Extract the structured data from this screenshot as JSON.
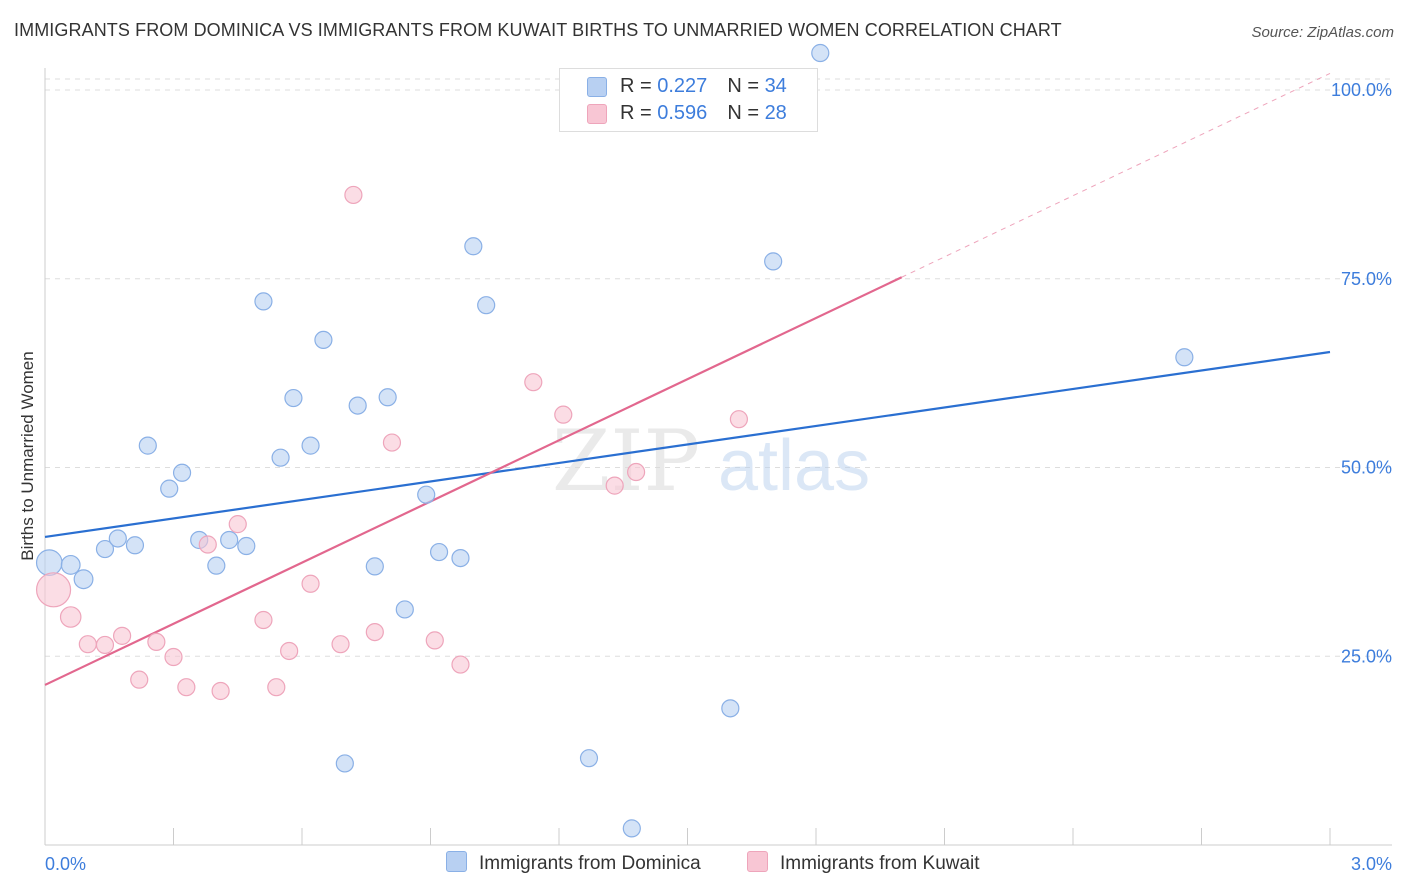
{
  "title": "IMMIGRANTS FROM DOMINICA VS IMMIGRANTS FROM KUWAIT BIRTHS TO UNMARRIED WOMEN CORRELATION CHART",
  "source": "Source: ZipAtlas.com",
  "watermark": {
    "zip": "ZIP",
    "atlas": "atlas"
  },
  "colors": {
    "blue_fill": "#b8d0f2",
    "blue_stroke": "#8ab0e6",
    "blue_line": "#2a6fd1",
    "pink_fill": "#f8c6d4",
    "pink_stroke": "#eea5bb",
    "pink_line": "#e2678e",
    "axis_label": "#3d7ddc",
    "grid": "#dddddd"
  },
  "legend": {
    "rows": [
      {
        "r_label": "R = ",
        "r_value": "0.227",
        "n_label": "N = ",
        "n_value": "34"
      },
      {
        "r_label": "R = ",
        "r_value": "0.596",
        "n_label": "N = ",
        "n_value": "28"
      }
    ]
  },
  "chart_data": {
    "type": "scatter",
    "title": "IMMIGRANTS FROM DOMINICA VS IMMIGRANTS FROM KUWAIT BIRTHS TO UNMARRIED WOMEN CORRELATION CHART",
    "xlabel": "",
    "ylabel": "Births to Unmarried Women",
    "xlim": [
      0,
      3.0
    ],
    "ylim": [
      0,
      100
    ],
    "x_tick_labels": [
      "0.0%",
      "3.0%"
    ],
    "y_tick_labels": [
      "25.0%",
      "50.0%",
      "75.0%",
      "100.0%"
    ],
    "y_ticks": [
      25,
      50,
      75,
      100
    ],
    "grid": true,
    "legend_position": "top-center",
    "series": [
      {
        "name": "Immigrants from Dominica",
        "color": "#b8d0f2",
        "R": 0.227,
        "N": 34,
        "trend": {
          "x": [
            0,
            3.0
          ],
          "y": [
            40.8,
            65.3
          ],
          "extrapolate_to": null
        },
        "points": [
          {
            "x": 0.01,
            "y": 37.4,
            "s": 1.5
          },
          {
            "x": 0.06,
            "y": 37.1,
            "s": 1.1
          },
          {
            "x": 0.09,
            "y": 35.2,
            "s": 1.1
          },
          {
            "x": 0.14,
            "y": 39.2,
            "s": 1
          },
          {
            "x": 0.17,
            "y": 40.6,
            "s": 1
          },
          {
            "x": 0.21,
            "y": 39.7,
            "s": 1
          },
          {
            "x": 0.24,
            "y": 52.9,
            "s": 1
          },
          {
            "x": 0.29,
            "y": 47.2,
            "s": 1
          },
          {
            "x": 0.32,
            "y": 49.3,
            "s": 1
          },
          {
            "x": 0.36,
            "y": 40.4,
            "s": 1
          },
          {
            "x": 0.4,
            "y": 37.0,
            "s": 1
          },
          {
            "x": 0.43,
            "y": 40.4,
            "s": 1
          },
          {
            "x": 0.47,
            "y": 39.6,
            "s": 1
          },
          {
            "x": 0.51,
            "y": 72.0,
            "s": 1
          },
          {
            "x": 0.55,
            "y": 51.3,
            "s": 1
          },
          {
            "x": 0.58,
            "y": 59.2,
            "s": 1
          },
          {
            "x": 0.62,
            "y": 52.9,
            "s": 1
          },
          {
            "x": 0.65,
            "y": 66.9,
            "s": 1
          },
          {
            "x": 0.7,
            "y": 10.8,
            "s": 1
          },
          {
            "x": 0.73,
            "y": 58.2,
            "s": 1
          },
          {
            "x": 0.77,
            "y": 36.9,
            "s": 1
          },
          {
            "x": 0.8,
            "y": 59.3,
            "s": 1
          },
          {
            "x": 0.84,
            "y": 31.2,
            "s": 1
          },
          {
            "x": 0.89,
            "y": 46.4,
            "s": 1
          },
          {
            "x": 0.92,
            "y": 38.8,
            "s": 1
          },
          {
            "x": 0.97,
            "y": 38.0,
            "s": 1
          },
          {
            "x": 1.0,
            "y": 79.3,
            "s": 1
          },
          {
            "x": 1.03,
            "y": 71.5,
            "s": 1
          },
          {
            "x": 1.27,
            "y": 11.5,
            "s": 1
          },
          {
            "x": 1.37,
            "y": 2.2,
            "s": 1
          },
          {
            "x": 1.6,
            "y": 18.1,
            "s": 1
          },
          {
            "x": 1.7,
            "y": 77.3,
            "s": 1
          },
          {
            "x": 1.81,
            "y": 104.9,
            "s": 1
          },
          {
            "x": 2.66,
            "y": 64.6,
            "s": 1
          }
        ]
      },
      {
        "name": "Immigrants from Kuwait",
        "color": "#f8c6d4",
        "R": 0.596,
        "N": 28,
        "trend": {
          "x": [
            0,
            2.0
          ],
          "y": [
            21.2,
            75.2
          ],
          "extrapolate_to": {
            "x": 3.0,
            "y": 102.2
          }
        },
        "points": [
          {
            "x": 0.02,
            "y": 33.8,
            "s": 2.0
          },
          {
            "x": 0.06,
            "y": 30.2,
            "s": 1.2
          },
          {
            "x": 0.1,
            "y": 26.6,
            "s": 1
          },
          {
            "x": 0.14,
            "y": 26.5,
            "s": 1
          },
          {
            "x": 0.18,
            "y": 27.7,
            "s": 1
          },
          {
            "x": 0.22,
            "y": 21.9,
            "s": 1
          },
          {
            "x": 0.26,
            "y": 26.9,
            "s": 1
          },
          {
            "x": 0.3,
            "y": 24.9,
            "s": 1
          },
          {
            "x": 0.33,
            "y": 20.9,
            "s": 1
          },
          {
            "x": 0.38,
            "y": 39.8,
            "s": 1
          },
          {
            "x": 0.41,
            "y": 20.4,
            "s": 1
          },
          {
            "x": 0.45,
            "y": 42.5,
            "s": 1
          },
          {
            "x": 0.51,
            "y": 29.8,
            "s": 1
          },
          {
            "x": 0.54,
            "y": 20.9,
            "s": 1
          },
          {
            "x": 0.57,
            "y": 25.7,
            "s": 1
          },
          {
            "x": 0.62,
            "y": 34.6,
            "s": 1
          },
          {
            "x": 0.69,
            "y": 26.6,
            "s": 1
          },
          {
            "x": 0.72,
            "y": 86.1,
            "s": 1
          },
          {
            "x": 0.77,
            "y": 28.2,
            "s": 1
          },
          {
            "x": 0.81,
            "y": 53.3,
            "s": 1
          },
          {
            "x": 0.91,
            "y": 27.1,
            "s": 1
          },
          {
            "x": 0.97,
            "y": 23.9,
            "s": 1
          },
          {
            "x": 1.14,
            "y": 61.3,
            "s": 1
          },
          {
            "x": 1.21,
            "y": 57.0,
            "s": 1
          },
          {
            "x": 1.33,
            "y": 47.6,
            "s": 1
          },
          {
            "x": 1.38,
            "y": 49.4,
            "s": 1
          },
          {
            "x": 1.62,
            "y": 56.4,
            "s": 1
          }
        ]
      }
    ]
  }
}
